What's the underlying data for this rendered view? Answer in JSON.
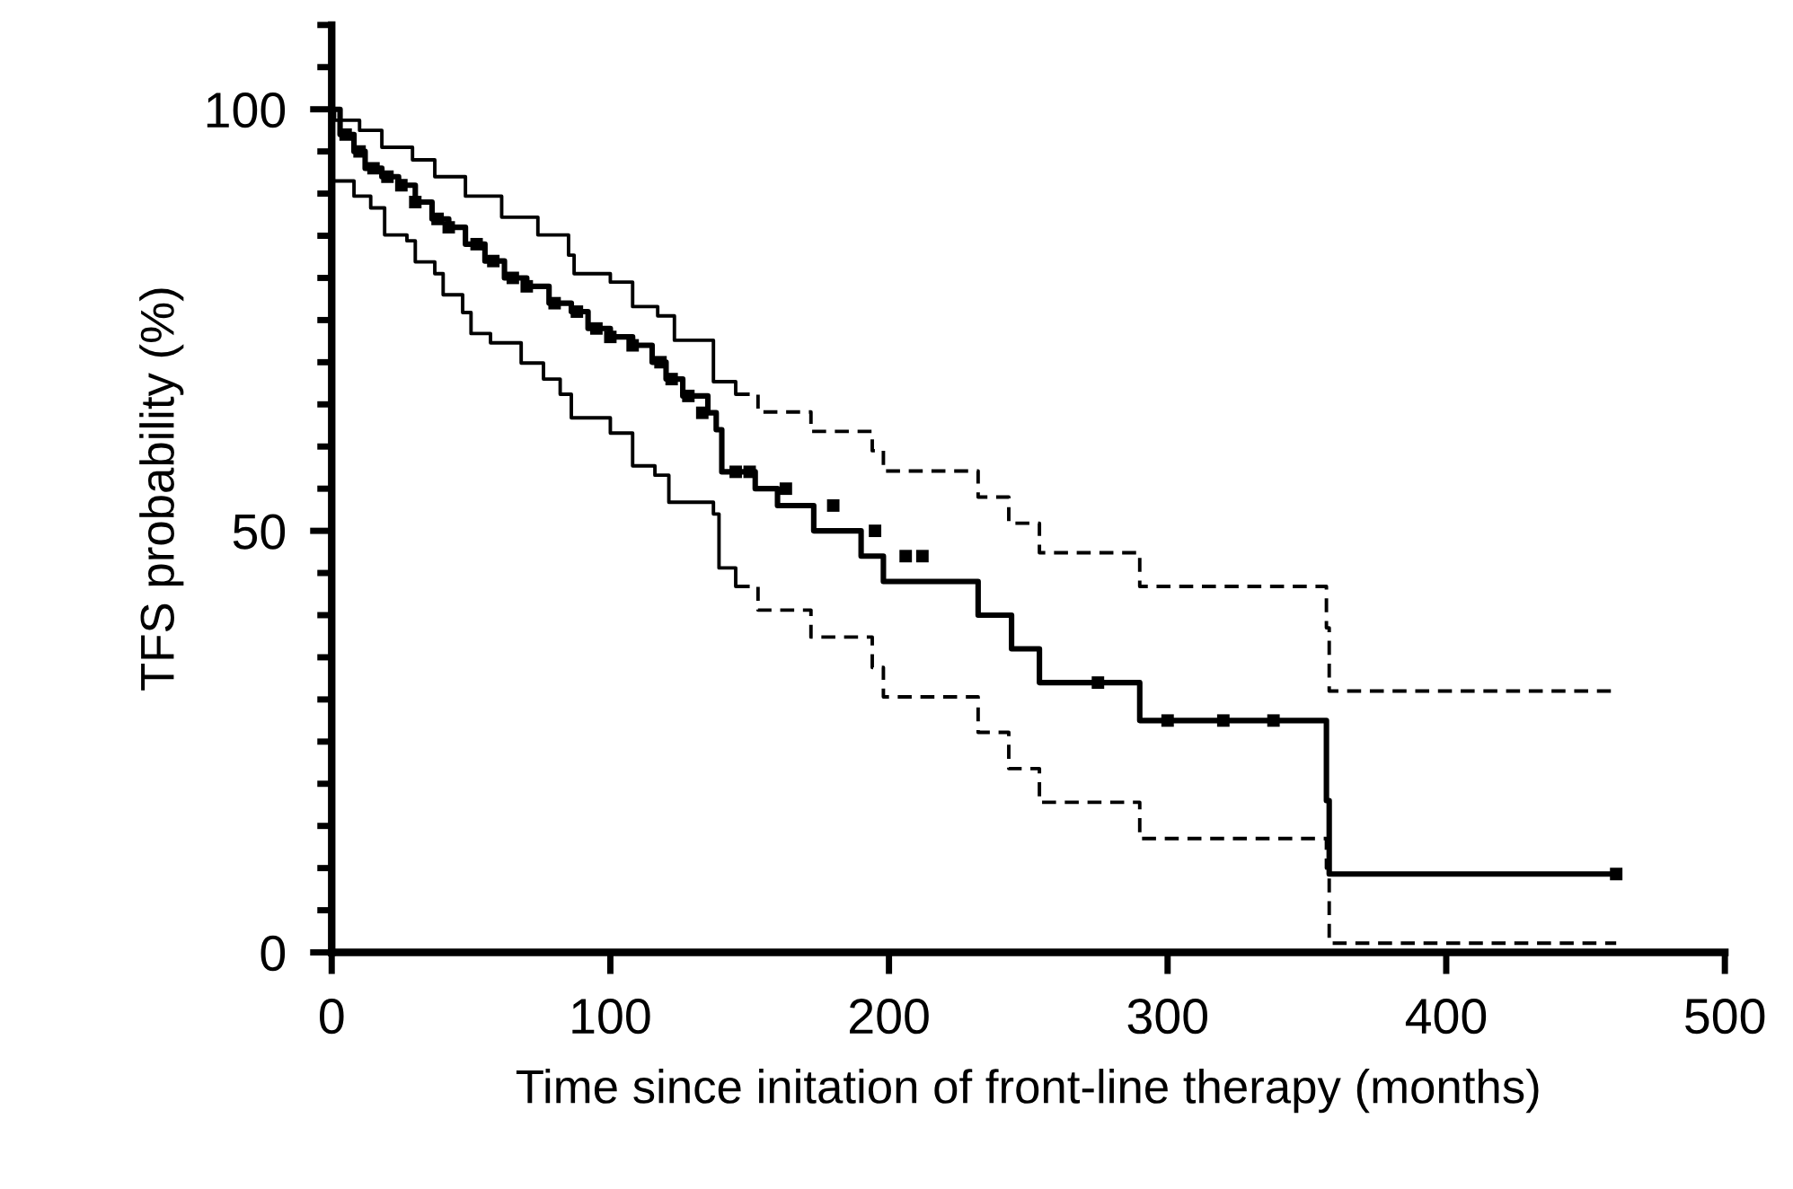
{
  "chart_data": {
    "type": "step",
    "xlabel": "Time since initation of front-line therapy (months)",
    "ylabel": "TFS probability (%)",
    "xlim": [
      0,
      500
    ],
    "xticks": [
      0,
      100,
      200,
      300,
      400,
      500
    ],
    "ylim": [
      0,
      110
    ],
    "yticks": [
      0,
      {
        "value": 5,
        "label": null
      },
      {
        "value": 10,
        "label": null
      },
      {
        "value": 15,
        "label": null
      },
      {
        "value": 20,
        "label": null
      },
      {
        "value": 25,
        "label": null
      },
      {
        "value": 30,
        "label": null
      },
      {
        "value": 35,
        "label": null
      },
      {
        "value": 40,
        "label": null
      },
      {
        "value": 45,
        "label": null
      },
      50,
      {
        "value": 55,
        "label": null
      },
      {
        "value": 60,
        "label": null
      },
      {
        "value": 65,
        "label": null
      },
      {
        "value": 70,
        "label": null
      },
      {
        "value": 75,
        "label": null
      },
      {
        "value": 80,
        "label": null
      },
      {
        "value": 85,
        "label": null
      },
      {
        "value": 90,
        "label": null
      },
      {
        "value": 95,
        "label": null
      },
      100,
      {
        "value": 105,
        "label": null
      },
      {
        "value": 110,
        "label": null
      }
    ],
    "grid": false,
    "legend": false,
    "series": [
      {
        "color": "#000000",
        "line_style": "solid",
        "x": [
          0,
          3,
          8,
          12,
          18,
          24,
          30,
          36,
          42,
          48,
          55,
          62,
          70,
          78,
          86,
          92,
          100,
          108,
          115,
          120,
          126,
          135,
          138,
          140,
          152,
          160,
          173,
          190,
          198,
          232,
          244,
          254,
          290,
          357,
          358,
          461
        ],
        "values": [
          100,
          97,
          95,
          93,
          92,
          91,
          89,
          87,
          86,
          84,
          82,
          80,
          79,
          77,
          76,
          74,
          73,
          72,
          70,
          68,
          66,
          64,
          62,
          57,
          55,
          53,
          50,
          47,
          44,
          40,
          36,
          32,
          27.5,
          18,
          9.3,
          9.3
        ]
      },
      {
        "color": "#000000",
        "line_style": "solid",
        "x": [
          0,
          1,
          10,
          18,
          29,
          37,
          48,
          61,
          74,
          85,
          87,
          100,
          108,
          117,
          123,
          137,
          145
        ],
        "values": [
          100,
          98.7,
          97.5,
          95.5,
          94,
          92,
          89.7,
          87.2,
          85.1,
          82.7,
          80.5,
          79.5,
          76.6,
          75.5,
          72.6,
          67.7,
          66.2
        ]
      },
      {
        "color": "#000000",
        "line_style": "dashed",
        "x": [
          145,
          153,
          172,
          194,
          198,
          232,
          243,
          254,
          290,
          357,
          358,
          461
        ],
        "values": [
          66.2,
          64.1,
          61.8,
          59.5,
          57.1,
          54,
          50.9,
          47.4,
          43.4,
          38.5,
          31,
          31
        ]
      },
      {
        "color": "#000000",
        "line_style": "solid",
        "x": [
          0,
          0.5,
          8,
          14,
          19,
          27,
          30,
          37,
          40,
          47,
          50,
          57,
          68,
          76,
          82,
          86,
          100,
          108,
          116,
          121,
          137,
          139,
          145
        ],
        "values": [
          100,
          91.5,
          89.7,
          88.3,
          85.1,
          84.4,
          81.9,
          80.5,
          78,
          75.9,
          73.4,
          72.3,
          69.9,
          68,
          66.2,
          63.4,
          61.6,
          57.7,
          56.6,
          53.4,
          52,
          45.6,
          43.4
        ]
      },
      {
        "color": "#000000",
        "line_style": "dashed",
        "x": [
          145,
          153,
          172,
          194,
          198,
          232,
          243,
          254,
          290,
          357,
          358,
          461
        ],
        "values": [
          43.4,
          40.6,
          37.4,
          33.8,
          30.3,
          26.1,
          21.8,
          17.8,
          13.5,
          10,
          1.1,
          1.1
        ]
      },
      {
        "type": "scatter",
        "color": "#000000",
        "marker": "square",
        "x": [
          5,
          10,
          15,
          20,
          25,
          30,
          38,
          42,
          52,
          58,
          65,
          70,
          80,
          88,
          95,
          100,
          108,
          118,
          122,
          128,
          133,
          145,
          150,
          163,
          180,
          195,
          206,
          212,
          275,
          300,
          320,
          338,
          461
        ],
        "values": [
          97,
          95,
          93,
          92,
          91,
          89,
          87,
          86,
          84,
          82,
          80,
          79,
          77,
          76,
          74,
          73,
          72,
          70,
          68,
          66,
          64,
          57,
          57,
          55,
          53,
          50,
          47,
          47,
          32,
          27.5,
          27.5,
          27.5,
          9.3
        ]
      }
    ]
  }
}
